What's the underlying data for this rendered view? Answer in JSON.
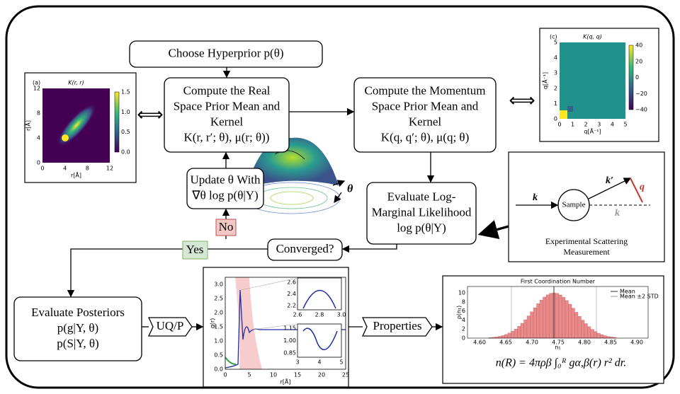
{
  "nodes": [
    {
      "lines": [
        "Choose Hyperprior p(θ)"
      ]
    },
    {
      "lines": [
        "Compute the Real",
        "Space Prior Mean and",
        "Kernel",
        "K(r, r′; θ), μ(r; θ))"
      ]
    },
    {
      "lines": [
        "Compute the Momentum",
        "Space Prior Mean and",
        "Kernel",
        "K(q, q′; θ), μ(q; θ)"
      ]
    },
    {
      "lines": [
        "Update θ With",
        "∇θ log p(θ|Y)"
      ]
    },
    {
      "lines": [
        "Evaluate Log-",
        "Marginal Likelihood",
        "log p(θ|Y)"
      ]
    },
    {
      "lines": [
        "Converged?"
      ]
    },
    {
      "lines": [
        "Evaluate Posteriors",
        "p(g|Y, θ)",
        "p(S|Y, θ)"
      ]
    }
  ],
  "tags": {
    "no": "No",
    "yes": "Yes",
    "uqp": "UQ/P",
    "properties": "Properties"
  },
  "real_kernel_plot": {
    "panel": "(a)",
    "title": "K(r, r)",
    "xlabel": "r[Å]",
    "ylabel": "r[Å]",
    "xticks": [
      "0",
      "4",
      "8",
      "12"
    ],
    "yticks": [
      "0",
      "4",
      "8",
      "12"
    ],
    "colorbar_ticks": [
      "0.0",
      "0.5",
      "1.0",
      "1.5"
    ]
  },
  "momentum_kernel_plot": {
    "panel": "(c)",
    "title": "K(q, q)",
    "xlabel": "q[Å⁻¹]",
    "ylabel": "q[Å⁻¹]",
    "xticks": [
      "0",
      "1",
      "2",
      "3",
      "4",
      "5"
    ],
    "yticks": [
      "0",
      "1",
      "2",
      "3",
      "4",
      "5"
    ],
    "colorbar_ticks": [
      "−40",
      "−20",
      "0",
      "20",
      "40"
    ]
  },
  "surface": {
    "label": "θ"
  },
  "scattering": {
    "incoming": "k",
    "outgoing": "k′",
    "transfer": "q",
    "ghost": "k",
    "sample": "Sample",
    "caption": [
      "Experimental Scattering",
      "Measurement"
    ]
  },
  "gr_plot": {
    "ylabel": "g(r)",
    "xlabel": "r[Å]",
    "yticks": [
      "0.0",
      "0.5",
      "1.0",
      "1.5",
      "2.0",
      "2.5",
      "3.0"
    ],
    "xticks": [
      "0",
      "5",
      "10",
      "15",
      "20",
      "25"
    ],
    "inset_top": {
      "yticks": [
        "2.2",
        "2.4",
        "2.6"
      ],
      "xticks": [
        "2.6",
        "2.8",
        "3.0"
      ]
    },
    "inset_bottom": {
      "yticks": [
        "0.85",
        "1.00",
        "1.15"
      ],
      "xticks": [
        "3",
        "4",
        "5"
      ]
    }
  },
  "histogram": {
    "title": "First Coordination Number",
    "legend": [
      "Mean",
      "Mean ±2 STD"
    ],
    "xlabel": "n₁",
    "ylabel": "ρ(n₁)",
    "xticks": [
      "4.60",
      "4.65",
      "4.70",
      "4.75",
      "4.80",
      "4.85",
      "4.90"
    ],
    "yticks": [
      "0",
      "2",
      "4",
      "6",
      "8",
      "10"
    ],
    "formula": "n(R) = 4πρβ ∫₀ᴿ gα,β(r) r² dr."
  }
}
